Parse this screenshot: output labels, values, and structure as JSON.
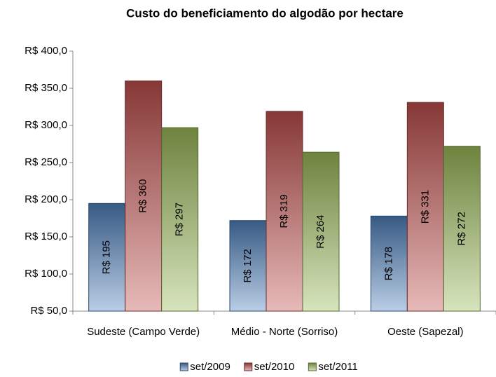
{
  "chart_data": {
    "type": "bar",
    "title": "Custo do beneficiamento do algodão por hectare",
    "categories": [
      "Sudeste (Campo Verde)",
      "Médio - Norte (Sorriso)",
      "Oeste (Sapezal)"
    ],
    "series": [
      {
        "name": "set/2009",
        "color": "#4f81bd",
        "values": [
          195,
          172,
          178
        ],
        "value_labels": [
          "R$ 195",
          "R$ 172",
          "R$ 178"
        ]
      },
      {
        "name": "set/2010",
        "color": "#c0504d",
        "values": [
          360,
          319,
          331
        ],
        "value_labels": [
          "R$ 360",
          "R$ 319",
          "R$ 331"
        ]
      },
      {
        "name": "set/2011",
        "color": "#9bbb59",
        "values": [
          297,
          264,
          272
        ],
        "value_labels": [
          "R$ 297",
          "R$ 264",
          "R$ 272"
        ]
      }
    ],
    "ylim": [
      50,
      400
    ],
    "yticks": [
      {
        "value": 50,
        "label": "R$ 50,0"
      },
      {
        "value": 100,
        "label": "R$ 100,0"
      },
      {
        "value": 150,
        "label": "R$ 150,0"
      },
      {
        "value": 200,
        "label": "R$ 200,0"
      },
      {
        "value": 250,
        "label": "R$ 250,0"
      },
      {
        "value": 300,
        "label": "R$ 300,0"
      },
      {
        "value": 350,
        "label": "R$ 350,0"
      },
      {
        "value": 400,
        "label": "R$ 400,0"
      }
    ],
    "legend": "bottom"
  }
}
